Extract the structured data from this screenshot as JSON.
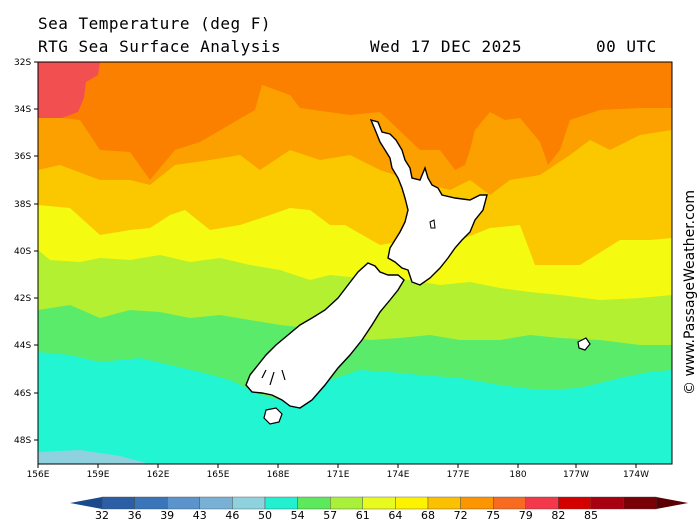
{
  "header": {
    "title": "Sea Temperature (deg F)",
    "subtitle": "RTG Sea Surface Analysis",
    "date": "Wed 17 DEC 2025",
    "time": "00 UTC"
  },
  "copyright": "© www.PassageWeather.com",
  "axes": {
    "lat_labels": [
      "32S",
      "34S",
      "36S",
      "38S",
      "40S",
      "42S",
      "44S",
      "46S",
      "48S"
    ],
    "lon_labels": [
      "156E",
      "159E",
      "162E",
      "165E",
      "168E",
      "171E",
      "174E",
      "177E",
      "180",
      "177W",
      "174W"
    ]
  },
  "colorbar": {
    "labels": [
      "32",
      "36",
      "39",
      "43",
      "46",
      "50",
      "54",
      "57",
      "61",
      "64",
      "68",
      "72",
      "75",
      "79",
      "82",
      "85"
    ],
    "colors": [
      "#2c5ea6",
      "#3a74b9",
      "#5b94cc",
      "#79b1d6",
      "#8fd2de",
      "#22f0d0",
      "#5cea5c",
      "#a8f03a",
      "#e8fa1e",
      "#fdf200",
      "#fbc100",
      "#fc9500",
      "#f76a20",
      "#f2384a",
      "#d40000",
      "#a80010",
      "#7a0008"
    ],
    "left_arrow_color": "#1a4a8a",
    "right_arrow_color": "#5a0005"
  },
  "legend_colors": {
    "water_cold": "#22f5d2",
    "water_cool": "#5aeb6a",
    "water_mild": "#b4f032",
    "water_61": "#f4fa10",
    "water_64": "#fbc800",
    "water_68": "#fca000",
    "water_72": "#fb8000",
    "water_75": "#f25050",
    "land": "#ffffff"
  }
}
